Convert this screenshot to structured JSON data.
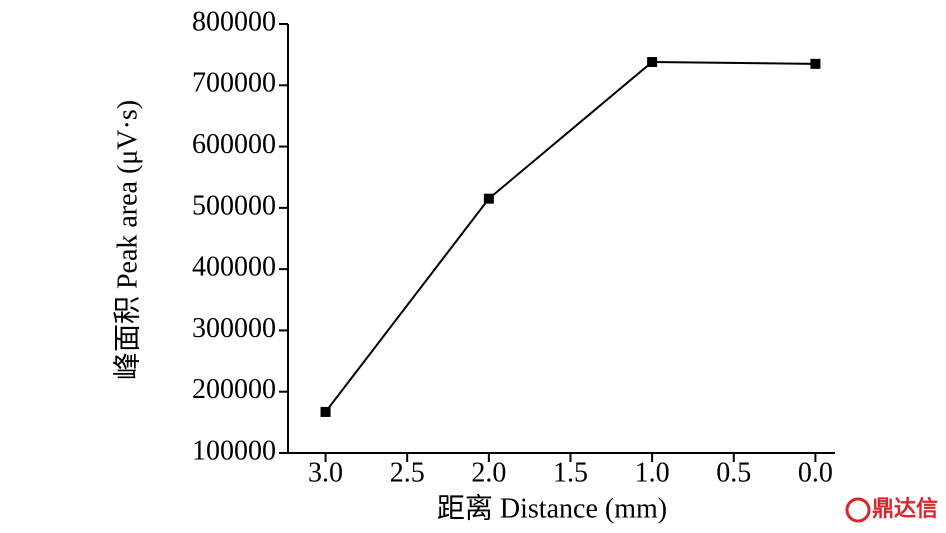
{
  "chart_data": {
    "type": "line",
    "x_label": "距离 Distance (mm)",
    "y_label": "峰面积 Peak area (μV·s)",
    "x": [
      3,
      2,
      1,
      0
    ],
    "values": [
      167000,
      515000,
      738000,
      735000
    ],
    "color": "#000000",
    "xlim": [
      3.23,
      -0.12
    ],
    "ylim": [
      100000,
      800000
    ],
    "xticks": [
      {
        "value": 3,
        "label": "3.0"
      },
      2.5,
      {
        "value": 2,
        "label": "2.0"
      },
      1.5,
      {
        "value": 1,
        "label": "1.0"
      },
      0.5,
      {
        "value": 0,
        "label": "0.0"
      }
    ],
    "yticks": [
      100000,
      200000,
      300000,
      400000,
      500000,
      600000,
      700000,
      800000
    ]
  },
  "watermark": "鼎达信"
}
